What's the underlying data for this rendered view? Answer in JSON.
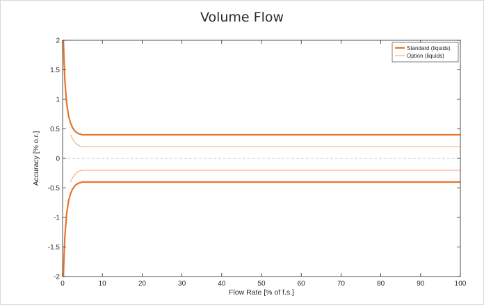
{
  "chart_data": {
    "type": "line",
    "title": "Volume Flow",
    "xlabel": "Flow Rate [% of f.s.]",
    "ylabel": "Accuracy [% o.r.]",
    "xlim": [
      0,
      100
    ],
    "ylim": [
      -2,
      2
    ],
    "xticks": [
      0,
      10,
      20,
      30,
      40,
      50,
      60,
      70,
      80,
      90,
      100
    ],
    "yticks": [
      -2,
      -1.5,
      -1,
      -0.5,
      0,
      0.5,
      1,
      1.5,
      2
    ],
    "grid": false,
    "zero_line": "dashed",
    "legend_position": "top-right",
    "series": [
      {
        "name": "Standard (liquids)",
        "color": "#e8732c",
        "x": [
          0.2,
          0.4,
          0.6,
          1,
          1.5,
          2,
          2.5,
          3,
          3.5,
          4,
          5,
          6,
          100
        ],
        "upper": [
          2.0,
          1.6,
          1.3,
          0.95,
          0.72,
          0.6,
          0.52,
          0.47,
          0.44,
          0.42,
          0.4,
          0.4,
          0.4
        ],
        "lower": [
          -2.0,
          -1.6,
          -1.3,
          -0.95,
          -0.72,
          -0.6,
          -0.52,
          -0.47,
          -0.44,
          -0.42,
          -0.4,
          -0.4,
          -0.4
        ]
      },
      {
        "name": "Option (liquids)",
        "color": "#f5a878",
        "x": [
          2,
          2.5,
          3,
          3.5,
          4,
          4.5,
          5,
          100
        ],
        "upper": [
          0.4,
          0.33,
          0.28,
          0.245,
          0.22,
          0.205,
          0.2,
          0.2
        ],
        "lower": [
          -0.4,
          -0.33,
          -0.28,
          -0.245,
          -0.22,
          -0.205,
          -0.2,
          -0.2
        ]
      }
    ]
  }
}
